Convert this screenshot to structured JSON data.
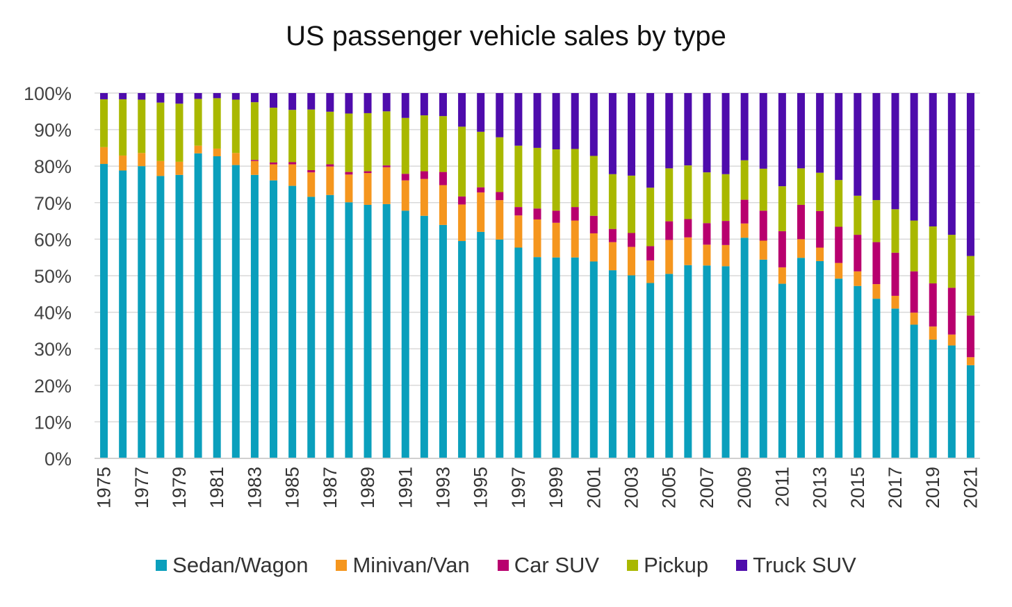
{
  "chart_data": {
    "type": "bar",
    "stacked": true,
    "title": "US passenger vehicle sales by type",
    "xlabel": "",
    "ylabel": "",
    "ylim": [
      0,
      100
    ],
    "y_ticks": [
      "0%",
      "10%",
      "20%",
      "30%",
      "40%",
      "50%",
      "60%",
      "70%",
      "80%",
      "90%",
      "100%"
    ],
    "grid": true,
    "legend_position": "bottom",
    "categories": [
      1975,
      1976,
      1977,
      1978,
      1979,
      1980,
      1981,
      1982,
      1983,
      1984,
      1985,
      1986,
      1987,
      1988,
      1989,
      1990,
      1991,
      1992,
      1993,
      1994,
      1995,
      1996,
      1997,
      1998,
      1999,
      2000,
      2001,
      2002,
      2003,
      2004,
      2005,
      2006,
      2007,
      2008,
      2009,
      2010,
      2011,
      2012,
      2013,
      2014,
      2015,
      2016,
      2017,
      2018,
      2019,
      2020,
      2021
    ],
    "x_tick_labels": [
      "1975",
      "1977",
      "1979",
      "1981",
      "1983",
      "1985",
      "1987",
      "1989",
      "1991",
      "1993",
      "1995",
      "1997",
      "1999",
      "2001",
      "2003",
      "2005",
      "2007",
      "2009",
      "2011",
      "2013",
      "2015",
      "2017",
      "2019",
      "2021"
    ],
    "series": [
      {
        "name": "Sedan/Wagon",
        "color": "#0a9fbc",
        "values": [
          80.6,
          78.8,
          80.0,
          77.3,
          77.6,
          83.5,
          82.7,
          80.3,
          77.6,
          76.1,
          74.6,
          71.6,
          72.1,
          70.1,
          69.4,
          69.6,
          67.8,
          66.4,
          63.9,
          59.5,
          62.0,
          59.9,
          57.7,
          55.1,
          55.0,
          55.0,
          53.9,
          51.5,
          50.1,
          48.0,
          50.5,
          52.9,
          52.8,
          52.6,
          60.4,
          54.4,
          47.8,
          54.9,
          54.0,
          49.2,
          47.2,
          43.7,
          41.0,
          36.6,
          32.5,
          30.9,
          25.5
        ]
      },
      {
        "name": "Minivan/Van",
        "color": "#f5961e",
        "values": [
          4.6,
          4.1,
          3.6,
          4.1,
          3.6,
          2.1,
          2.1,
          3.3,
          3.8,
          4.4,
          5.9,
          6.7,
          7.8,
          7.6,
          8.7,
          10.1,
          8.3,
          10.1,
          10.9,
          10.0,
          10.8,
          10.8,
          8.8,
          10.3,
          9.5,
          10.1,
          7.7,
          7.7,
          7.8,
          6.2,
          9.3,
          7.6,
          5.7,
          5.8,
          3.9,
          5.2,
          4.5,
          5.1,
          3.7,
          4.3,
          4.0,
          4.0,
          3.5,
          3.3,
          3.6,
          3.0,
          2.2
        ]
      },
      {
        "name": "Car SUV",
        "color": "#b8006e",
        "values": [
          0,
          0,
          0,
          0,
          0,
          0,
          0,
          0,
          0.3,
          0.5,
          0.6,
          0.6,
          0.6,
          0.7,
          0.5,
          0.5,
          1.8,
          2.1,
          3.6,
          2.2,
          1.4,
          2.2,
          2.3,
          3.0,
          3.3,
          3.7,
          4.8,
          3.6,
          3.8,
          3.9,
          5.1,
          5.0,
          5.9,
          6.6,
          6.5,
          8.2,
          9.9,
          9.4,
          10.0,
          9.9,
          10.0,
          11.5,
          11.8,
          11.3,
          11.8,
          12.8,
          11.4
        ]
      },
      {
        "name": "Pickup",
        "color": "#a9b800",
        "values": [
          13.1,
          15.4,
          14.6,
          16.0,
          15.9,
          12.8,
          13.8,
          14.6,
          15.8,
          15.0,
          14.3,
          16.6,
          14.4,
          16.0,
          15.9,
          14.8,
          15.3,
          15.3,
          15.3,
          19.1,
          15.2,
          15.0,
          16.8,
          16.6,
          16.8,
          15.9,
          16.4,
          15.0,
          15.7,
          16.0,
          14.5,
          14.7,
          13.9,
          12.8,
          10.8,
          11.5,
          12.3,
          10.0,
          10.5,
          12.8,
          10.7,
          11.5,
          11.9,
          13.9,
          15.6,
          14.5,
          16.3
        ]
      },
      {
        "name": "Truck SUV",
        "color": "#4e0cac",
        "values": [
          1.7,
          1.7,
          1.8,
          2.6,
          2.9,
          1.6,
          1.4,
          1.8,
          2.5,
          4.0,
          4.6,
          4.5,
          5.1,
          5.6,
          5.5,
          5.0,
          6.8,
          6.1,
          6.3,
          9.2,
          10.6,
          12.1,
          14.4,
          15.0,
          15.4,
          15.3,
          17.2,
          22.2,
          22.6,
          25.9,
          20.6,
          19.8,
          21.7,
          22.2,
          18.4,
          20.7,
          25.5,
          20.6,
          21.8,
          23.8,
          28.1,
          29.3,
          31.8,
          34.9,
          36.5,
          38.8,
          44.6
        ]
      }
    ]
  }
}
